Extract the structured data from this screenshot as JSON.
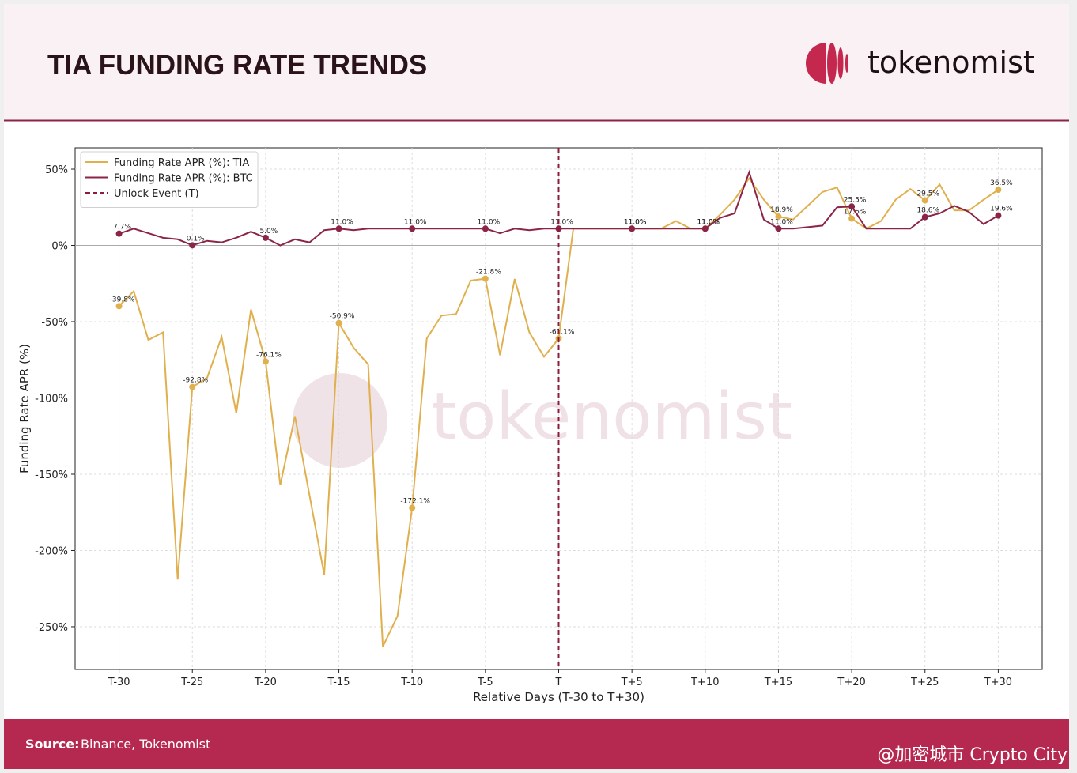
{
  "header": {
    "title": "TIA FUNDING RATE TRENDS",
    "brand": "tokenomist"
  },
  "footer": {
    "source_label": "Source:",
    "source": "Binance, Tokenomist",
    "credit": "@加密城市 Crypto City"
  },
  "chart_data": {
    "type": "line",
    "watermark": "tokenomist",
    "xlabel": "Relative Days (T-30 to T+30)",
    "ylabel": "Funding Rate APR (%)",
    "x": [
      -30,
      -29,
      -28,
      -27,
      -26,
      -25,
      -24,
      -23,
      -22,
      -21,
      -20,
      -19,
      -18,
      -17,
      -16,
      -15,
      -14,
      -13,
      -12,
      -11,
      -10,
      -9,
      -8,
      -7,
      -6,
      -5,
      -4,
      -3,
      -2,
      -1,
      0,
      1,
      2,
      3,
      4,
      5,
      6,
      7,
      8,
      9,
      10,
      11,
      12,
      13,
      14,
      15,
      16,
      17,
      18,
      19,
      20,
      21,
      22,
      23,
      24,
      25,
      26,
      27,
      28,
      29,
      30
    ],
    "series": [
      {
        "name": "Funding Rate APR (%): TIA",
        "color": "#e0b04e",
        "values": [
          -39.8,
          -30,
          -62,
          -57,
          -219,
          -92.8,
          -87,
          -60,
          -110,
          -42,
          -76.1,
          -157,
          -112,
          -164,
          -216,
          -50.9,
          -67,
          -78,
          -263,
          -243,
          -172.1,
          -61,
          -46,
          -45,
          -23,
          -21.8,
          -72,
          -22,
          -57,
          -73,
          -61.1,
          11,
          11,
          11,
          11,
          11.0,
          11,
          11,
          16,
          11,
          11.0,
          20,
          30,
          44,
          30,
          18.9,
          17,
          26,
          35,
          38,
          17.6,
          11,
          16,
          30,
          37,
          29.5,
          40,
          23,
          23,
          30,
          36.5
        ],
        "value_labels": [
          "-39.8%",
          null,
          null,
          null,
          null,
          "-92.8%",
          null,
          null,
          null,
          null,
          "-76.1%",
          null,
          null,
          null,
          null,
          "-50.9%",
          null,
          null,
          null,
          null,
          "-172.1%",
          null,
          null,
          null,
          null,
          "-21.8%",
          null,
          null,
          null,
          null,
          "-61.1%",
          null,
          null,
          null,
          null,
          "11.0%",
          null,
          null,
          null,
          null,
          "11.0%",
          null,
          null,
          null,
          null,
          "18.9%",
          null,
          null,
          null,
          null,
          "17.6%",
          null,
          null,
          null,
          null,
          "29.5%",
          null,
          null,
          null,
          null,
          "36.5%"
        ]
      },
      {
        "name": "Funding Rate APR (%): BTC",
        "color": "#8c2447",
        "values": [
          7.7,
          11,
          8,
          5,
          4,
          0.1,
          3,
          2,
          5,
          9,
          5.0,
          0,
          4,
          2,
          10,
          11.0,
          10,
          11,
          11,
          11,
          11.0,
          11,
          11,
          11,
          11,
          11.0,
          8,
          11,
          10,
          11,
          11.0,
          11,
          11,
          11,
          11,
          11.0,
          11,
          11,
          11,
          11,
          11.0,
          18,
          21,
          48,
          17,
          11.0,
          11,
          12,
          13,
          25,
          25.5,
          11,
          11,
          11,
          11,
          18.6,
          21,
          26,
          22,
          14,
          19.6
        ],
        "value_labels": [
          "7.7%",
          null,
          null,
          null,
          null,
          "0.1%",
          null,
          null,
          null,
          null,
          "5.0%",
          null,
          null,
          null,
          null,
          "11.0%",
          null,
          null,
          null,
          null,
          "11.0%",
          null,
          null,
          null,
          null,
          "11.0%",
          null,
          null,
          null,
          null,
          "11.0%",
          null,
          null,
          null,
          null,
          "11.0%",
          null,
          null,
          null,
          null,
          "11.0%",
          null,
          null,
          null,
          null,
          "11.0%",
          null,
          null,
          null,
          null,
          "25.5%",
          null,
          null,
          null,
          null,
          "18.6%",
          null,
          null,
          null,
          null,
          "19.6%"
        ]
      }
    ],
    "events": [
      {
        "name": "Unlock Event (T)",
        "x": 0,
        "color": "#8c1c3c"
      }
    ],
    "xlim": [
      -33,
      33
    ],
    "ylim": [
      -278,
      64
    ],
    "xticks": [
      {
        "value": -30,
        "label": "T-30"
      },
      {
        "value": -25,
        "label": "T-25"
      },
      {
        "value": -20,
        "label": "T-20"
      },
      {
        "value": -15,
        "label": "T-15"
      },
      {
        "value": -10,
        "label": "T-10"
      },
      {
        "value": -5,
        "label": "T-5"
      },
      {
        "value": 0,
        "label": "T"
      },
      {
        "value": 5,
        "label": "T+5"
      },
      {
        "value": 10,
        "label": "T+10"
      },
      {
        "value": 15,
        "label": "T+15"
      },
      {
        "value": 20,
        "label": "T+20"
      },
      {
        "value": 25,
        "label": "T+25"
      },
      {
        "value": 30,
        "label": "T+30"
      }
    ],
    "yticks": [
      {
        "value": 50,
        "label": "50%"
      },
      {
        "value": 0,
        "label": "0%"
      },
      {
        "value": -50,
        "label": "-50%"
      },
      {
        "value": -100,
        "label": "-100%"
      },
      {
        "value": -150,
        "label": "-150%"
      },
      {
        "value": -200,
        "label": "-200%"
      },
      {
        "value": -250,
        "label": "-250%"
      }
    ],
    "grid": true,
    "zero_line": true,
    "legend": "upper left"
  }
}
